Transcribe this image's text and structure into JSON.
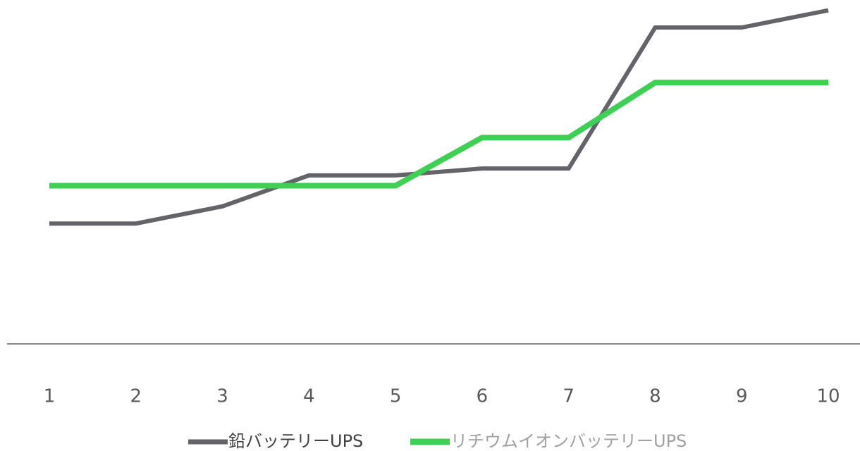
{
  "chart_data": {
    "type": "line",
    "categories": [
      1,
      2,
      3,
      4,
      5,
      6,
      7,
      8,
      9,
      10
    ],
    "series": [
      {
        "name": "鉛バッテリーUPS",
        "color": "#636369",
        "values": [
          35,
          35,
          40,
          49,
          49,
          51,
          51,
          92,
          92,
          97
        ]
      },
      {
        "name": "リチウムイオンバッテリーUPS",
        "color": "#3ecf55",
        "values": [
          46,
          46,
          46,
          46,
          46,
          60,
          60,
          76,
          76,
          76
        ]
      }
    ],
    "ylim": [
      0,
      100
    ],
    "legend": "bottom"
  }
}
